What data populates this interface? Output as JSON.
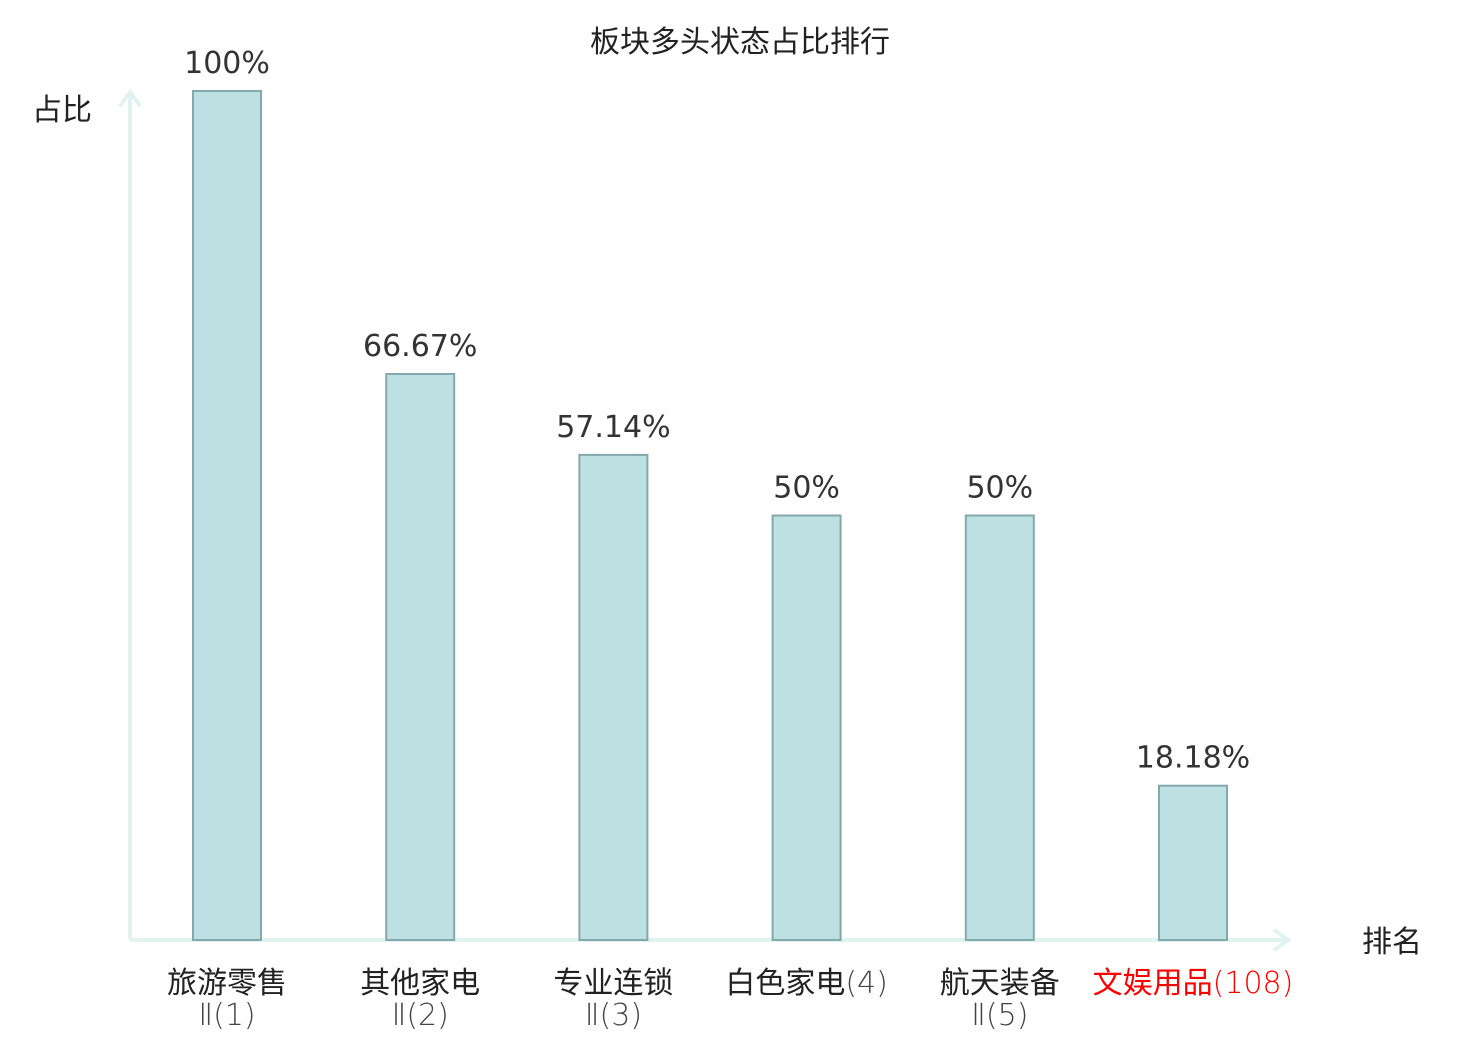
{
  "chart_data": {
    "type": "bar",
    "title": "板块多头状态占比排行",
    "xlabel": "排名",
    "ylabel": "占比",
    "ylim": [
      0,
      100
    ],
    "grid": false,
    "categories": [
      {
        "name": "旅游零售",
        "rank": "Ⅱ(1)",
        "highlight": false
      },
      {
        "name": "其他家电",
        "rank": "Ⅱ(2)",
        "highlight": false
      },
      {
        "name": "专业连锁",
        "rank": "Ⅱ(3)",
        "highlight": false
      },
      {
        "name": "白色家电",
        "rank": "(4)",
        "highlight": false
      },
      {
        "name": "航天装备",
        "rank": "Ⅱ(5)",
        "highlight": false
      },
      {
        "name": "文娱用品",
        "rank": "(108)",
        "highlight": true
      }
    ],
    "values": [
      100,
      66.67,
      57.14,
      50,
      50,
      18.18
    ],
    "value_labels": [
      "100%",
      "66.67%",
      "57.14%",
      "50%",
      "50%",
      "18.18%"
    ],
    "colors": {
      "bar_fill": "#bde0e3",
      "bar_stroke": "#84a8ab",
      "axis": "#e0f3f1",
      "text": "#333333",
      "highlight_text": "#ff0000",
      "rank_text": "#444444"
    }
  }
}
